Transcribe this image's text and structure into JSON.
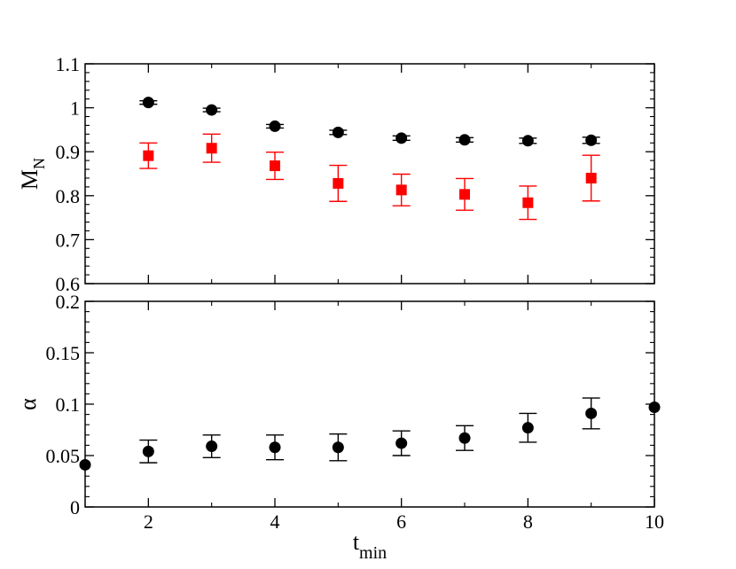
{
  "chart_data": [
    {
      "type": "scatter",
      "panel": "top",
      "ylabel": "M",
      "ylabel_sub": "N",
      "xlim": [
        1,
        10
      ],
      "ylim": [
        0.6,
        1.1
      ],
      "yticks": [
        0.6,
        0.7,
        0.8,
        0.9,
        1,
        1.1
      ],
      "ytick_labels": [
        "0.6",
        "0.7",
        "0.8",
        "0.9",
        "1",
        "1.1"
      ],
      "series": [
        {
          "marker": "circle",
          "color": "#000000",
          "x": [
            2,
            3,
            4,
            5,
            6,
            7,
            8,
            9
          ],
          "y": [
            1.012,
            0.995,
            0.958,
            0.944,
            0.931,
            0.927,
            0.925,
            0.926
          ],
          "err": [
            0.004,
            0.004,
            0.004,
            0.005,
            0.005,
            0.005,
            0.006,
            0.007
          ]
        },
        {
          "marker": "square",
          "color": "#ff0000",
          "x": [
            2,
            3,
            4,
            5,
            6,
            7,
            8,
            9
          ],
          "y": [
            0.891,
            0.908,
            0.868,
            0.828,
            0.813,
            0.803,
            0.784,
            0.84
          ],
          "err": [
            0.029,
            0.032,
            0.031,
            0.041,
            0.036,
            0.036,
            0.038,
            0.052
          ]
        }
      ]
    },
    {
      "type": "scatter",
      "panel": "bottom",
      "xlabel": "t",
      "xlabel_sub": "min",
      "ylabel": "α",
      "xlim": [
        1,
        10
      ],
      "ylim": [
        0,
        0.2
      ],
      "xticks": [
        2,
        4,
        6,
        8,
        10
      ],
      "xtick_labels": [
        "2",
        "4",
        "6",
        "8",
        "10"
      ],
      "yticks": [
        0,
        0.05,
        0.1,
        0.15,
        0.2
      ],
      "ytick_labels": [
        "0",
        "0.05",
        "0.1",
        "0.15",
        "0.2"
      ],
      "series": [
        {
          "marker": "circle",
          "color": "#000000",
          "x": [
            1,
            2,
            3,
            4,
            5,
            6,
            7,
            8,
            9,
            10
          ],
          "y": [
            0.041,
            0.054,
            0.059,
            0.058,
            0.058,
            0.062,
            0.067,
            0.077,
            0.091,
            0.097
          ],
          "err": [
            0,
            0.011,
            0.011,
            0.012,
            0.013,
            0.012,
            0.012,
            0.014,
            0.015,
            0
          ]
        }
      ]
    }
  ]
}
